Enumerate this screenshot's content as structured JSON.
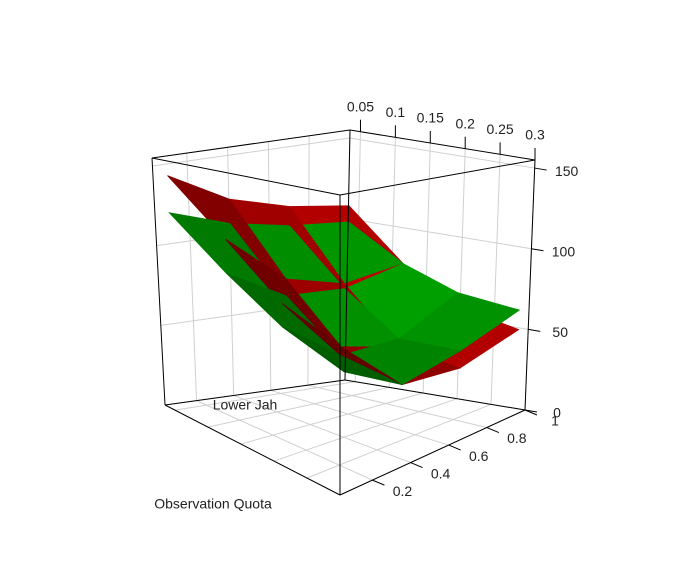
{
  "chart_data": {
    "type": "surface3d",
    "xlabel": "Lower Jah",
    "ylabel": "Observation Quota",
    "x": [
      0.05,
      0.13,
      0.21,
      0.3
    ],
    "y": [
      0.05,
      0.35,
      0.65,
      0.95
    ],
    "xlim": [
      0.035,
      0.3
    ],
    "ylim": [
      0.03,
      1.0
    ],
    "zlim": [
      0,
      155
    ],
    "xticks": [
      0.05,
      0.1,
      0.15,
      0.2,
      0.25,
      0.3
    ],
    "yticks": [
      0.2,
      0.4,
      0.6,
      0.8,
      1
    ],
    "zticks": [
      0,
      50,
      100,
      150
    ],
    "grid": true,
    "series": [
      {
        "color": "#c00000",
        "z": [
          [
            145,
            115,
            88,
            70
          ],
          [
            125,
            85,
            55,
            45
          ],
          [
            115,
            75,
            45,
            42
          ],
          [
            110,
            80,
            60,
            52
          ]
        ]
      },
      {
        "color": "#00a000",
        "z": [
          [
            122,
            95,
            75,
            63
          ],
          [
            110,
            75,
            50,
            45
          ],
          [
            103,
            72,
            50,
            52
          ],
          [
            100,
            80,
            68,
            64
          ]
        ]
      }
    ]
  }
}
